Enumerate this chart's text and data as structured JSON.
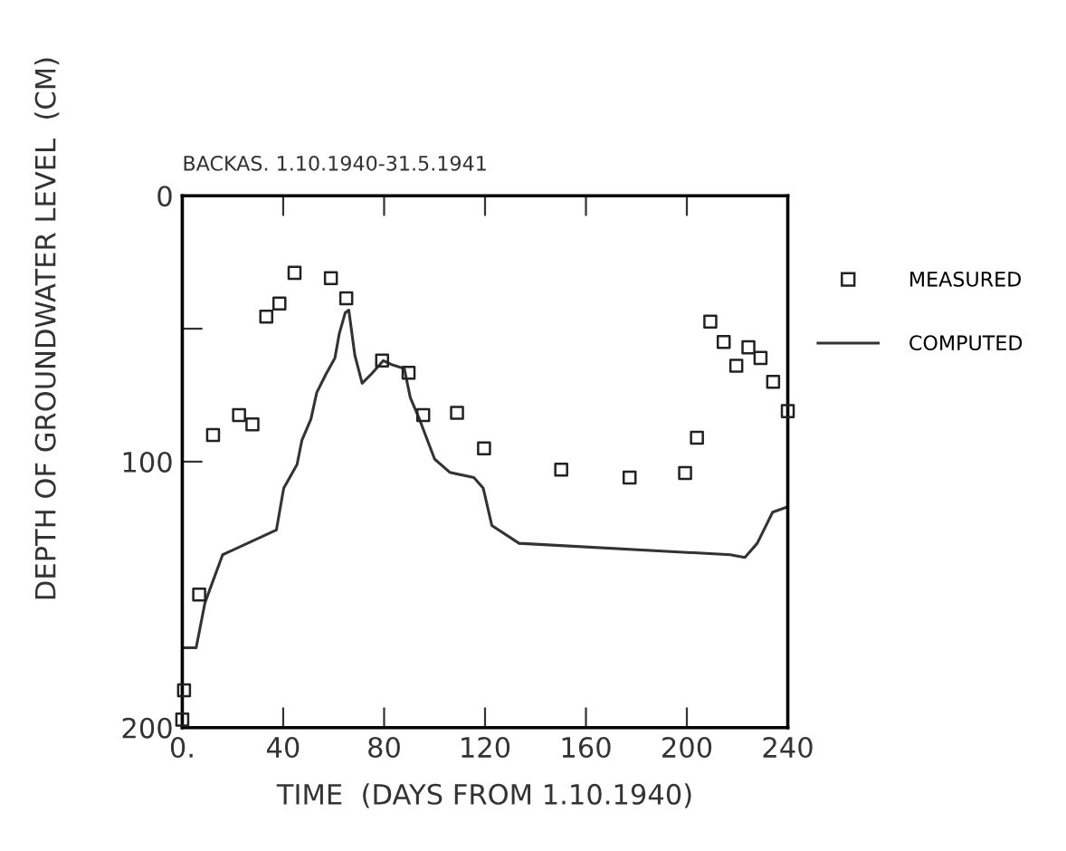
{
  "chart_data": {
    "type": "scatter",
    "title": "BACKAS. 1.10.1940-31.5.1941",
    "xlabel": "TIME  (DAYS FROM 1.10.1940)",
    "ylabel": "DEPTH OF GROUNDWATER LEVEL  (CM)",
    "xlim": [
      0,
      240
    ],
    "xticks": [
      {
        "value": 0,
        "label": "0."
      },
      40,
      80,
      120,
      160,
      200,
      240
    ],
    "ylim": [
      200,
      0
    ],
    "yticks": [
      0,
      {
        "value": 50,
        "label": null
      },
      100,
      200
    ],
    "legend": "right",
    "grid": false,
    "series": [
      {
        "name": "MEASURED",
        "marker": "square",
        "color": "#222222",
        "x": [
          0,
          0.7,
          6.7,
          12.2,
          22.5,
          27.8,
          33.3,
          38.5,
          44.5,
          58.9,
          65,
          79.2,
          89.7,
          95.5,
          108.9,
          119.6,
          150.2,
          177.3,
          199.3,
          204,
          209.3,
          214.6,
          219.6,
          224.4,
          229.2,
          234.2,
          240
        ],
        "values": [
          197,
          186,
          150,
          90,
          82.5,
          86,
          45.5,
          40.5,
          29,
          31,
          38.6,
          62,
          66.6,
          82.5,
          81.6,
          95,
          103,
          106,
          104.3,
          91,
          47.3,
          55,
          63.9,
          57,
          61,
          70,
          81
        ]
      },
      {
        "name": "COMPUTED",
        "type": "line",
        "marker": "none",
        "line_style": "solid",
        "color": "#333333",
        "x": [
          0,
          0,
          5.5,
          9,
          16,
          37.3,
          40.2,
          45.5,
          47.4,
          51,
          53.3,
          57,
          60.5,
          62.2,
          64.6,
          66,
          68.4,
          71.3,
          75,
          79.7,
          83.3,
          88,
          90.4,
          94,
          100,
          106,
          115.6,
          119.3,
          122.7,
          133.5,
          217.2,
          223,
          227.9,
          234,
          240
        ],
        "values": [
          147,
          170,
          170,
          153,
          135,
          125.7,
          110,
          101,
          92,
          84,
          74,
          67,
          61,
          52,
          44,
          43,
          60,
          70.5,
          67,
          62,
          63.6,
          65,
          76,
          84,
          99,
          104,
          106,
          110,
          124,
          130.7,
          135,
          136,
          130.7,
          119,
          117
        ]
      }
    ]
  }
}
